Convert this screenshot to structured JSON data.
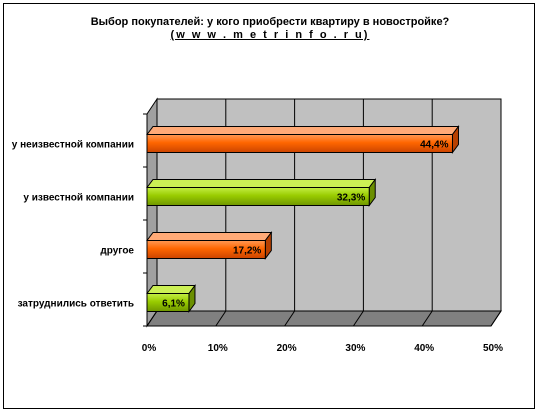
{
  "chart_data": {
    "type": "bar",
    "orientation": "horizontal",
    "title": "Выбор покупателей: у кого приобрести квартиру в новостройке?",
    "subtitle": "(w w w . m e t r i n f o . r u)",
    "categories": [
      "у неизвестной компании",
      "у известной компании",
      "другое",
      "затруднились ответить"
    ],
    "values": [
      44.4,
      32.3,
      17.2,
      6.1
    ],
    "value_labels": [
      "44,4%",
      "32,3%",
      "17,2%",
      "6,1%"
    ],
    "bar_colors": [
      "#ff6600",
      "#99cc00",
      "#ff6600",
      "#99cc00"
    ],
    "xlim": [
      0,
      50
    ],
    "xticks": [
      0,
      10,
      20,
      30,
      40,
      50
    ],
    "xtick_labels": [
      "0%",
      "10%",
      "20%",
      "30%",
      "40%",
      "50%"
    ],
    "grid": true,
    "style": "3d",
    "legend": "none"
  }
}
